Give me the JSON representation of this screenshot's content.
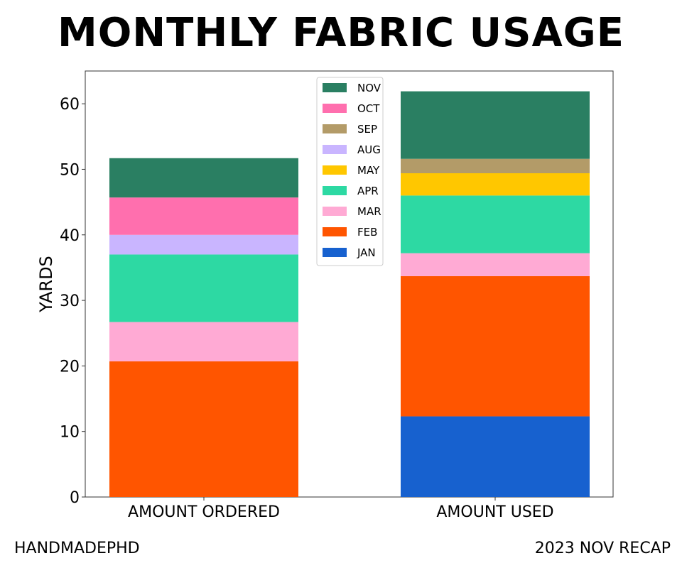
{
  "title": "MONTHLY FABRIC USAGE",
  "footer": {
    "left": "HANDMADEPHD",
    "right": "2023 NOV RECAP"
  },
  "chart_data": {
    "type": "bar",
    "stacked": true,
    "title": "MONTHLY FABRIC USAGE",
    "xlabel": "",
    "ylabel": "YARDS",
    "ylim": [
      0,
      65
    ],
    "yticks": [
      0,
      10,
      20,
      30,
      40,
      50,
      60
    ],
    "categories": [
      "AMOUNT ORDERED",
      "AMOUNT USED"
    ],
    "grid": false,
    "legend_position": "top-center",
    "legend_order": [
      "NOV",
      "OCT",
      "SEP",
      "AUG",
      "MAY",
      "APR",
      "MAR",
      "FEB",
      "JAN"
    ],
    "series": [
      {
        "name": "JAN",
        "color": "#1761cf",
        "values": [
          0,
          12.3
        ]
      },
      {
        "name": "FEB",
        "color": "#ff5500",
        "values": [
          20.7,
          21.4
        ]
      },
      {
        "name": "MAR",
        "color": "#ffaad4",
        "values": [
          6.0,
          3.5
        ]
      },
      {
        "name": "APR",
        "color": "#2dd9a3",
        "values": [
          10.3,
          8.8
        ]
      },
      {
        "name": "MAY",
        "color": "#ffc700",
        "values": [
          0,
          3.4
        ]
      },
      {
        "name": "AUG",
        "color": "#c9b5ff",
        "values": [
          3.0,
          0
        ]
      },
      {
        "name": "SEP",
        "color": "#b39b68",
        "values": [
          0,
          2.2
        ]
      },
      {
        "name": "OCT",
        "color": "#ff6fae",
        "values": [
          5.7,
          0
        ]
      },
      {
        "name": "NOV",
        "color": "#2a7f62",
        "values": [
          6.0,
          10.3
        ]
      }
    ]
  }
}
